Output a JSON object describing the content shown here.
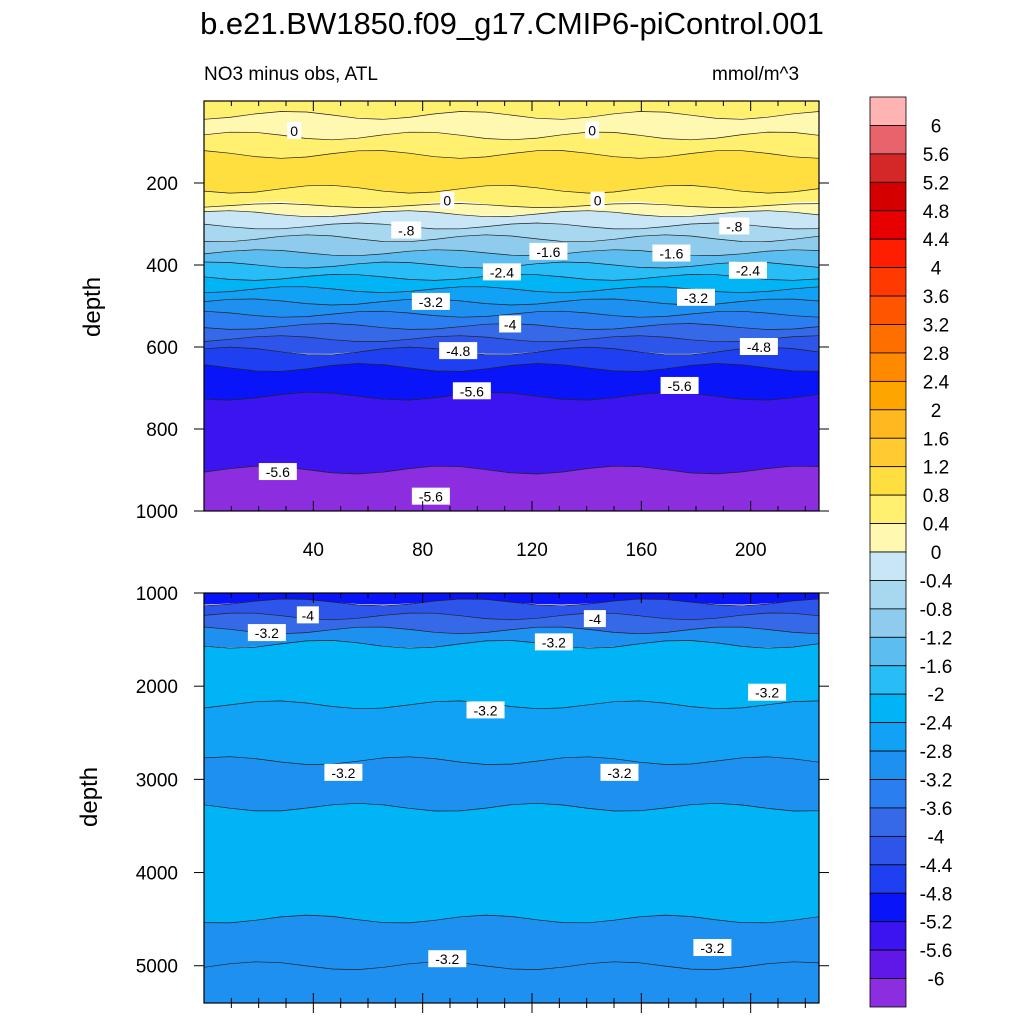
{
  "title": "b.e21.BW1850.f09_g17.CMIP6-piControl.001",
  "colors": {
    "levels": [
      {
        "label": "6",
        "color": "#ffb3b3"
      },
      {
        "label": "5.6",
        "color": "#e8636b"
      },
      {
        "label": "5.2",
        "color": "#d42828"
      },
      {
        "label": "4.8",
        "color": "#d40000"
      },
      {
        "label": "4.4",
        "color": "#e80000"
      },
      {
        "label": "4",
        "color": "#ff1f00"
      },
      {
        "label": "3.6",
        "color": "#ff3a00"
      },
      {
        "label": "3.2",
        "color": "#ff5500"
      },
      {
        "label": "2.8",
        "color": "#ff6f00"
      },
      {
        "label": "2.4",
        "color": "#ff8a00"
      },
      {
        "label": "2",
        "color": "#ffa500"
      },
      {
        "label": "1.6",
        "color": "#ffb820"
      },
      {
        "label": "1.2",
        "color": "#ffcb30"
      },
      {
        "label": "0.8",
        "color": "#ffde40"
      },
      {
        "label": "0.4",
        "color": "#fff070"
      },
      {
        "label": "0",
        "color": "#fff8b0"
      },
      {
        "label": "-0.4",
        "color": "#c8e6f5"
      },
      {
        "label": "-0.8",
        "color": "#a8d8f0"
      },
      {
        "label": "-1.2",
        "color": "#8ecbed"
      },
      {
        "label": "-1.6",
        "color": "#5cbdf0"
      },
      {
        "label": "-2",
        "color": "#28bdf7"
      },
      {
        "label": "-2.4",
        "color": "#00b4f5"
      },
      {
        "label": "-2.8",
        "color": "#12a2f5"
      },
      {
        "label": "-3.2",
        "color": "#1e90f0"
      },
      {
        "label": "-3.6",
        "color": "#2a7ef0"
      },
      {
        "label": "-4",
        "color": "#3569e8"
      },
      {
        "label": "-4.4",
        "color": "#2d55ea"
      },
      {
        "label": "-4.8",
        "color": "#1e40f0"
      },
      {
        "label": "-5.2",
        "color": "#0a14f8"
      },
      {
        "label": "-5.6",
        "color": "#3c14f0"
      },
      {
        "label": "-6",
        "color": "#6018e8"
      },
      {
        "label": "",
        "color": "#8c2ee0"
      }
    ]
  },
  "chart_data": [
    {
      "type": "contour",
      "subtitle_left": "NO3 minus obs, ATL",
      "subtitle_right": "mmol/m^3",
      "ylabel": "depth",
      "xlim": [
        0,
        225
      ],
      "ylim": [
        0,
        1000
      ],
      "xticks": [
        40,
        80,
        120,
        160,
        200
      ],
      "yticks": [
        200,
        400,
        600,
        800,
        1000
      ],
      "bands": [
        {
          "depth": 0,
          "value": 0.2
        },
        {
          "depth": 35,
          "value": -0.4
        },
        {
          "depth": 85,
          "value": 0.3
        },
        {
          "depth": 130,
          "value": 0.5
        },
        {
          "depth": 215,
          "value": 0.1
        },
        {
          "depth": 255,
          "value": -0.2
        },
        {
          "depth": 275,
          "value": -0.6
        },
        {
          "depth": 305,
          "value": -1.0
        },
        {
          "depth": 335,
          "value": -1.4
        },
        {
          "depth": 370,
          "value": -1.8
        },
        {
          "depth": 400,
          "value": -2.2
        },
        {
          "depth": 430,
          "value": -2.6
        },
        {
          "depth": 460,
          "value": -3.0
        },
        {
          "depth": 490,
          "value": -3.4
        },
        {
          "depth": 520,
          "value": -3.8
        },
        {
          "depth": 550,
          "value": -4.2
        },
        {
          "depth": 580,
          "value": -4.6
        },
        {
          "depth": 610,
          "value": -5.0
        },
        {
          "depth": 650,
          "value": -5.4
        },
        {
          "depth": 720,
          "value": -5.8
        },
        {
          "depth": 900,
          "value": -6.1
        },
        {
          "depth": 1000,
          "value": -6.1
        }
      ],
      "contour_labels": [
        {
          "x": 33,
          "depth": 73,
          "text": "0"
        },
        {
          "x": 142,
          "depth": 72,
          "text": "0"
        },
        {
          "x": 89,
          "depth": 243,
          "text": "0"
        },
        {
          "x": 144,
          "depth": 243,
          "text": "0"
        },
        {
          "x": 74,
          "depth": 316,
          "text": "-.8"
        },
        {
          "x": 194,
          "depth": 306,
          "text": "-.8"
        },
        {
          "x": 126,
          "depth": 368,
          "text": "-1.6"
        },
        {
          "x": 171,
          "depth": 372,
          "text": "-1.6"
        },
        {
          "x": 109,
          "depth": 418,
          "text": "-2.4"
        },
        {
          "x": 199,
          "depth": 414,
          "text": "-2.4"
        },
        {
          "x": 83,
          "depth": 490,
          "text": "-3.2"
        },
        {
          "x": 180,
          "depth": 480,
          "text": "-3.2"
        },
        {
          "x": 112,
          "depth": 545,
          "text": "-4"
        },
        {
          "x": 93,
          "depth": 610,
          "text": "-4.8"
        },
        {
          "x": 203,
          "depth": 600,
          "text": "-4.8"
        },
        {
          "x": 98,
          "depth": 708,
          "text": "-5.6"
        },
        {
          "x": 174,
          "depth": 695,
          "text": "-5.6"
        },
        {
          "x": 27,
          "depth": 905,
          "text": "-5.6"
        },
        {
          "x": 83,
          "depth": 965,
          "text": "-5.6"
        }
      ]
    },
    {
      "type": "contour",
      "ylabel": "depth",
      "xlim": [
        0,
        225
      ],
      "ylim": [
        1000,
        5400
      ],
      "yticks": [
        1000,
        2000,
        3000,
        4000,
        5000
      ],
      "bands": [
        {
          "depth": 1000,
          "value": -5.3
        },
        {
          "depth": 1100,
          "value": -4.6
        },
        {
          "depth": 1250,
          "value": -4.1
        },
        {
          "depth": 1400,
          "value": -3.4
        },
        {
          "depth": 1550,
          "value": -2.6
        },
        {
          "depth": 2200,
          "value": -3.1
        },
        {
          "depth": 2800,
          "value": -3.3
        },
        {
          "depth": 3300,
          "value": -2.7
        },
        {
          "depth": 4500,
          "value": -3.3
        },
        {
          "depth": 5000,
          "value": -3.5
        },
        {
          "depth": 5400,
          "value": -3.5
        }
      ],
      "contour_labels": [
        {
          "x": 38,
          "depth": 1240,
          "text": "-4"
        },
        {
          "x": 23,
          "depth": 1430,
          "text": "-3.2"
        },
        {
          "x": 143,
          "depth": 1280,
          "text": "-4"
        },
        {
          "x": 128,
          "depth": 1530,
          "text": "-3.2"
        },
        {
          "x": 206,
          "depth": 2070,
          "text": "-3.2"
        },
        {
          "x": 103,
          "depth": 2260,
          "text": "-3.2"
        },
        {
          "x": 51,
          "depth": 2930,
          "text": "-3.2"
        },
        {
          "x": 152,
          "depth": 2930,
          "text": "-3.2"
        },
        {
          "x": 89,
          "depth": 4930,
          "text": "-3.2"
        },
        {
          "x": 186,
          "depth": 4810,
          "text": "-3.2"
        }
      ]
    }
  ]
}
